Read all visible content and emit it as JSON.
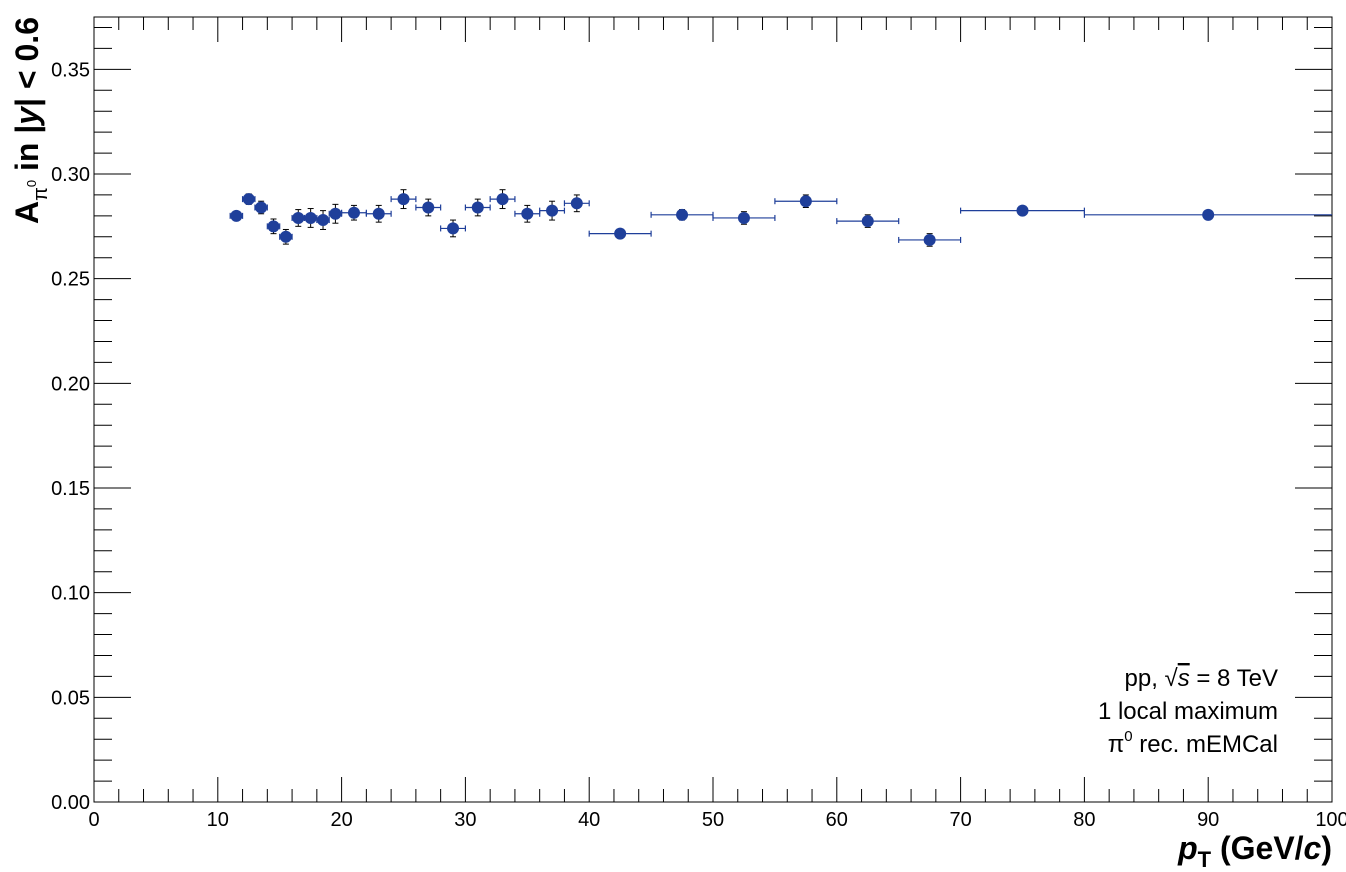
{
  "chart_data": {
    "type": "scatter",
    "xlabel": {
      "main": "p",
      "sub": "T",
      "units_open": " (GeV/",
      "units_var": "c",
      "units_close": ")"
    },
    "ylabel": {
      "main": "A",
      "sub": "π",
      "subsup": "0",
      "rest_a": " in |",
      "rest_var": "y",
      "rest_b": "| < 0.6"
    },
    "xlim": [
      0,
      100
    ],
    "ylim": [
      0,
      0.375
    ],
    "x_ticks": [
      "0",
      "10",
      "20",
      "30",
      "40",
      "50",
      "60",
      "70",
      "80",
      "90",
      "100"
    ],
    "y_ticks": [
      "0.00",
      "0.05",
      "0.10",
      "0.15",
      "0.20",
      "0.25",
      "0.30",
      "0.35"
    ],
    "legend": {
      "line1_a": "pp, ",
      "line1_root": "√",
      "line1_var": "s",
      "line1_b": " = 8 TeV",
      "line2": "1 local maximum",
      "line3_a": "π",
      "line3_sup": "0",
      "line3_b": " rec. mEMCal",
      "placement": "bottom-right"
    },
    "marker_color": "#1f3f9a",
    "series": [
      {
        "points": [
          {
            "x": 11.5,
            "y": 0.28,
            "xerr": 0.5,
            "yerr": 0.002
          },
          {
            "x": 12.5,
            "y": 0.288,
            "xerr": 0.5,
            "yerr": 0.0025
          },
          {
            "x": 13.5,
            "y": 0.284,
            "xerr": 0.5,
            "yerr": 0.003
          },
          {
            "x": 14.5,
            "y": 0.275,
            "xerr": 0.5,
            "yerr": 0.0035
          },
          {
            "x": 15.5,
            "y": 0.27,
            "xerr": 0.5,
            "yerr": 0.0035
          },
          {
            "x": 16.5,
            "y": 0.279,
            "xerr": 0.5,
            "yerr": 0.004
          },
          {
            "x": 17.5,
            "y": 0.279,
            "xerr": 0.5,
            "yerr": 0.0045
          },
          {
            "x": 18.5,
            "y": 0.278,
            "xerr": 0.5,
            "yerr": 0.0045
          },
          {
            "x": 19.5,
            "y": 0.281,
            "xerr": 0.5,
            "yerr": 0.0045
          },
          {
            "x": 21.0,
            "y": 0.2815,
            "xerr": 1.0,
            "yerr": 0.0035
          },
          {
            "x": 23.0,
            "y": 0.281,
            "xerr": 1.0,
            "yerr": 0.004
          },
          {
            "x": 25.0,
            "y": 0.288,
            "xerr": 1.0,
            "yerr": 0.0045
          },
          {
            "x": 27.0,
            "y": 0.284,
            "xerr": 1.0,
            "yerr": 0.004
          },
          {
            "x": 29.0,
            "y": 0.274,
            "xerr": 1.0,
            "yerr": 0.004
          },
          {
            "x": 31.0,
            "y": 0.284,
            "xerr": 1.0,
            "yerr": 0.004
          },
          {
            "x": 33.0,
            "y": 0.288,
            "xerr": 1.0,
            "yerr": 0.0045
          },
          {
            "x": 35.0,
            "y": 0.281,
            "xerr": 1.0,
            "yerr": 0.004
          },
          {
            "x": 37.0,
            "y": 0.2825,
            "xerr": 1.0,
            "yerr": 0.0045
          },
          {
            "x": 39.0,
            "y": 0.286,
            "xerr": 1.0,
            "yerr": 0.004
          },
          {
            "x": 42.5,
            "y": 0.2715,
            "xerr": 2.5,
            "yerr": 0.002
          },
          {
            "x": 47.5,
            "y": 0.2805,
            "xerr": 2.5,
            "yerr": 0.0025
          },
          {
            "x": 52.5,
            "y": 0.279,
            "xerr": 2.5,
            "yerr": 0.003
          },
          {
            "x": 57.5,
            "y": 0.287,
            "xerr": 2.5,
            "yerr": 0.003
          },
          {
            "x": 62.5,
            "y": 0.2775,
            "xerr": 2.5,
            "yerr": 0.003
          },
          {
            "x": 67.5,
            "y": 0.2685,
            "xerr": 2.5,
            "yerr": 0.003
          },
          {
            "x": 75.0,
            "y": 0.2825,
            "xerr": 5.0,
            "yerr": 0.002
          },
          {
            "x": 90.0,
            "y": 0.2805,
            "xerr": 10.0,
            "yerr": 0.0015
          }
        ]
      }
    ]
  }
}
